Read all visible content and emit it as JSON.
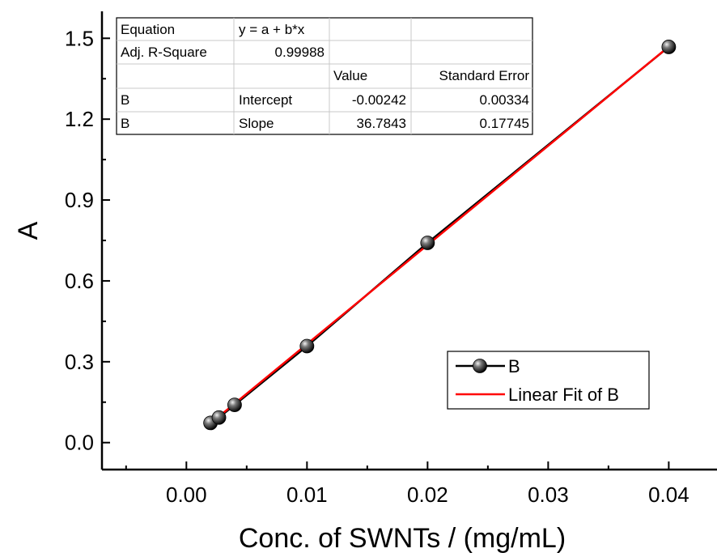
{
  "chart_data": {
    "type": "scatter",
    "xlabel": "Conc. of SWNTs / (mg/mL)",
    "ylabel": "A",
    "xlim": [
      -0.007,
      0.044
    ],
    "ylim": [
      -0.1,
      1.6
    ],
    "x_ticks": [
      0.0,
      0.01,
      0.02,
      0.03,
      0.04
    ],
    "x_tick_labels": [
      "0.00",
      "0.01",
      "0.02",
      "0.03",
      "0.04"
    ],
    "y_ticks": [
      0.0,
      0.3,
      0.6,
      0.9,
      1.2,
      1.5
    ],
    "y_tick_labels": [
      "0.0",
      "0.3",
      "0.6",
      "0.9",
      "1.2",
      "1.5"
    ],
    "grid": false,
    "series": [
      {
        "name": "B",
        "style": "line+markers",
        "color": "#000000",
        "x": [
          0.002,
          0.0027,
          0.004,
          0.01,
          0.02,
          0.04
        ],
        "y": [
          0.073,
          0.093,
          0.14,
          0.358,
          0.741,
          1.468
        ]
      },
      {
        "name": "Linear Fit of B",
        "style": "line",
        "color": "#ff0000",
        "intercept": -0.00242,
        "slope": 36.7843,
        "x_range": [
          0.002,
          0.04
        ]
      }
    ],
    "legend": {
      "position": "bottom-right",
      "entries": [
        "B",
        "Linear Fit of B"
      ]
    },
    "fit_table": {
      "rows": [
        [
          "Equation",
          "y = a + b*x",
          "",
          ""
        ],
        [
          "Adj. R-Square",
          "0.99988",
          "",
          ""
        ],
        [
          "",
          "",
          "Value",
          "Standard Error"
        ],
        [
          "B",
          "Intercept",
          "-0.00242",
          "0.00334"
        ],
        [
          "B",
          "Slope",
          "36.7843",
          "0.17745"
        ]
      ]
    }
  }
}
